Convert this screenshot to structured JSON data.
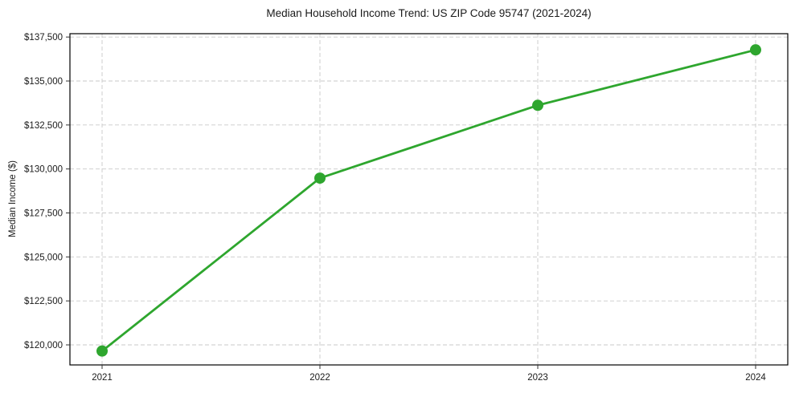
{
  "chart_data": {
    "type": "line",
    "title": "Median Household Income Trend: US ZIP Code 95747 (2021-2024)",
    "xlabel": "",
    "ylabel": "Median Income ($)",
    "categories": [
      "2021",
      "2022",
      "2023",
      "2024"
    ],
    "series": [
      {
        "name": "Median Household Income",
        "values": [
          119650,
          129480,
          133620,
          136770
        ],
        "color": "#2ea62e",
        "marker": "circle"
      }
    ],
    "y_ticks": [
      120000,
      122500,
      125000,
      127500,
      130000,
      132500,
      135000,
      137500
    ],
    "y_tick_labels": [
      "$120,000",
      "$122,500",
      "$125,000",
      "$127,500",
      "$130,000",
      "$132,500",
      "$135,000",
      "$137,500"
    ],
    "ylim": [
      118860,
      137690
    ],
    "grid": true,
    "grid_style": "dashed",
    "legend_position": "none"
  },
  "style": {
    "line_color": "#2ea62e",
    "marker_color": "#2ea62e",
    "grid_color": "#c9c9c9",
    "axis_color": "#000000",
    "tick_color": "#333333",
    "text_color": "#1a1a1a",
    "background_color": "#ffffff"
  }
}
